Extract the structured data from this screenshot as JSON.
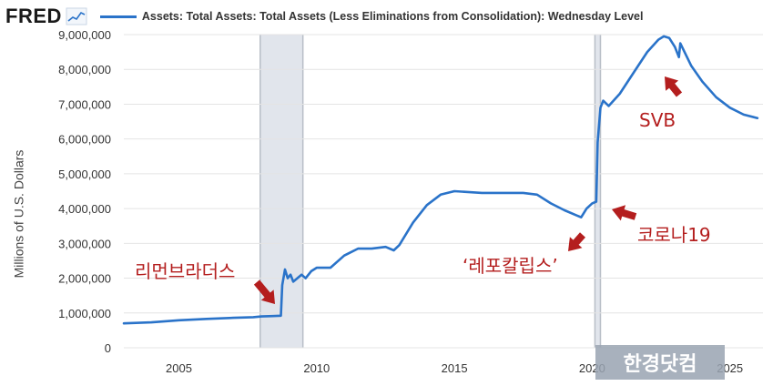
{
  "header": {
    "logo_text": "FRED",
    "legend_label": "Assets: Total Assets: Total Assets (Less Eliminations from Consolidation): Wednesday Level",
    "series_color": "#2a73c9",
    "logo_icon": "chart-trend-icon"
  },
  "chart_data": {
    "type": "line",
    "title": "",
    "xlabel": "",
    "ylabel": "Millions of U.S. Dollars",
    "xlim": [
      2003,
      2026.2
    ],
    "ylim": [
      0,
      9000000
    ],
    "x_ticks": [
      2005,
      2010,
      2015,
      2020,
      2025
    ],
    "x_tick_labels": [
      "2005",
      "2010",
      "2015",
      "2020",
      "2025"
    ],
    "y_ticks": [
      0,
      1000000,
      2000000,
      3000000,
      4000000,
      5000000,
      6000000,
      7000000,
      8000000,
      9000000
    ],
    "y_tick_labels": [
      "0",
      "1,000,000",
      "2,000,000",
      "3,000,000",
      "4,000,000",
      "5,000,000",
      "6,000,000",
      "7,000,000",
      "8,000,000",
      "9,000,000"
    ],
    "grid": "horizontal",
    "recessions": [
      [
        2007.95,
        2009.5
      ],
      [
        2020.1,
        2020.3
      ]
    ],
    "series": [
      {
        "name": "Assets: Total Assets: Total Assets (Less Eliminations from Consolidation): Wednesday Level",
        "x": [
          2003.0,
          2004.0,
          2005.0,
          2006.0,
          2007.0,
          2007.7,
          2008.0,
          2008.4,
          2008.7,
          2008.75,
          2008.85,
          2008.95,
          2009.05,
          2009.15,
          2009.3,
          2009.45,
          2009.6,
          2009.8,
          2010.0,
          2010.5,
          2011.0,
          2011.5,
          2012.0,
          2012.5,
          2012.8,
          2013.0,
          2013.5,
          2014.0,
          2014.5,
          2015.0,
          2016.0,
          2017.0,
          2017.5,
          2018.0,
          2018.5,
          2019.0,
          2019.6,
          2019.8,
          2020.0,
          2020.15,
          2020.2,
          2020.3,
          2020.4,
          2020.6,
          2021.0,
          2021.5,
          2022.0,
          2022.4,
          2022.6,
          2022.8,
          2023.0,
          2023.15,
          2023.2,
          2023.6,
          2024.0,
          2024.5,
          2025.0,
          2025.5,
          2026.0
        ],
        "y": [
          700000,
          730000,
          790000,
          830000,
          860000,
          880000,
          900000,
          910000,
          920000,
          1800000,
          2250000,
          2000000,
          2100000,
          1900000,
          2000000,
          2100000,
          2000000,
          2200000,
          2300000,
          2300000,
          2650000,
          2850000,
          2850000,
          2900000,
          2800000,
          2950000,
          3600000,
          4100000,
          4400000,
          4500000,
          4450000,
          4450000,
          4450000,
          4400000,
          4150000,
          3950000,
          3750000,
          4000000,
          4150000,
          4200000,
          5900000,
          6900000,
          7100000,
          6950000,
          7300000,
          7900000,
          8500000,
          8850000,
          8950000,
          8900000,
          8650000,
          8350000,
          8750000,
          8100000,
          7650000,
          7200000,
          6900000,
          6700000,
          6600000
        ]
      }
    ],
    "annotations": [
      {
        "text": "리먼브라더스",
        "color": "#b41e1e"
      },
      {
        "text": "‘레포칼립스’",
        "color": "#b41e1e"
      },
      {
        "text": "코로나19",
        "color": "#b41e1e"
      },
      {
        "text": "SVB",
        "color": "#b41e1e"
      }
    ]
  },
  "watermark": {
    "text": "한경닷컴"
  }
}
